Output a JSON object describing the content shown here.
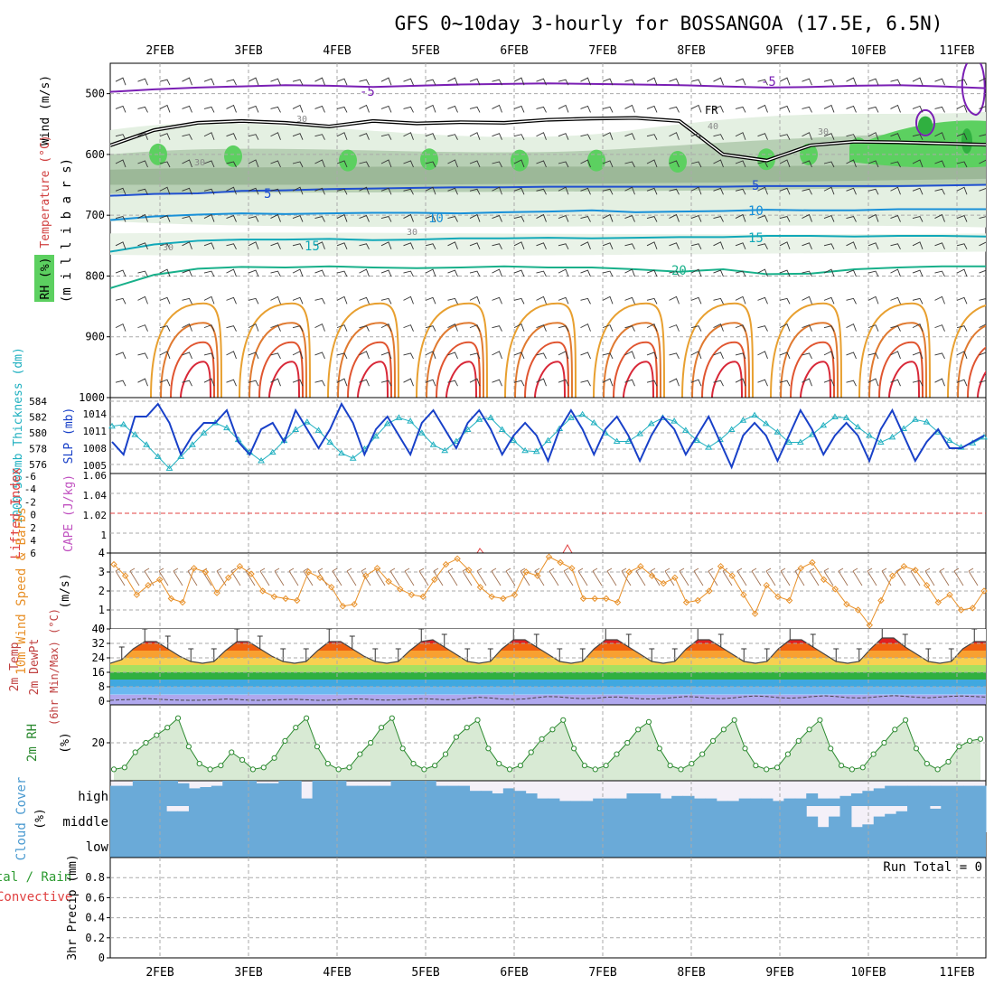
{
  "title": "GFS 0~10day 3-hourly for BOSSANGOA (17.5E, 6.5N)",
  "dates": [
    "2FEB",
    "3FEB",
    "4FEB",
    "5FEB",
    "6FEB",
    "7FEB",
    "8FEB",
    "9FEB",
    "10FEB",
    "11FEB"
  ],
  "chart_data": [
    {
      "panel": "upper-air",
      "type": "line",
      "labels": {
        "y_units": "(m i l l i b a r s)",
        "rh": "RH (%)",
        "temp": "Temperature (°C)",
        "wind": "Wind (m/s)"
      },
      "ylim": [
        1000,
        450
      ],
      "yticks": [
        500,
        600,
        700,
        800,
        900,
        1000
      ],
      "contour_labels": {
        "t_minus5": "-5",
        "t5": "5",
        "t10": "10",
        "t15": "15",
        "t20": "20",
        "freezing": "FR",
        "rh30": "30",
        "rh40": "40"
      },
      "series": [
        {
          "name": "-5",
          "color": "#7a1fb4",
          "y": [
            497,
            493,
            490,
            488,
            486,
            487,
            489,
            487,
            485,
            484,
            483,
            484,
            485,
            486,
            488,
            490,
            489,
            487,
            486,
            488,
            491
          ]
        },
        {
          "name": "FR",
          "color": "#000000",
          "y": [
            585,
            560,
            548,
            545,
            548,
            554,
            545,
            549,
            547,
            548,
            543,
            541,
            540,
            545,
            600,
            610,
            585,
            579,
            580,
            582,
            584
          ]
        },
        {
          "name": "5",
          "color": "#2050d0",
          "y": [
            668,
            665,
            664,
            660,
            659,
            657,
            656,
            655,
            654,
            654,
            653,
            653,
            653,
            653,
            653,
            652,
            652,
            652,
            652,
            651,
            650
          ]
        },
        {
          "name": "10",
          "color": "#1890d8",
          "y": [
            708,
            702,
            699,
            697,
            698,
            697,
            696,
            696,
            697,
            695,
            694,
            692,
            695,
            694,
            693,
            691,
            692,
            692,
            690,
            690,
            690
          ]
        },
        {
          "name": "15",
          "color": "#10a8b8",
          "y": [
            760,
            748,
            742,
            740,
            740,
            739,
            741,
            740,
            738,
            738,
            737,
            738,
            737,
            736,
            736,
            734,
            734,
            735,
            734,
            734,
            735
          ]
        },
        {
          "name": "20",
          "color": "#18b08a",
          "y": [
            820,
            798,
            788,
            785,
            786,
            784,
            786,
            787,
            786,
            784,
            786,
            786,
            789,
            793,
            789,
            797,
            796,
            789,
            786,
            784,
            784
          ]
        }
      ]
    },
    {
      "panel": "thickness-slp",
      "type": "line",
      "labels": {
        "thickness": "1000-500mb Thickness (dm)",
        "slp": "SLP (mb)"
      },
      "left_ticks": [
        "584",
        "582",
        "580",
        "578",
        "576"
      ],
      "right_ticks": [
        "1014",
        "1011",
        "1008",
        "1005"
      ],
      "thickness_ylim": [
        575,
        584
      ],
      "slp_ylim": [
        1004,
        1016
      ],
      "slp": [
        1009,
        1007,
        1013,
        1013,
        1015,
        1012,
        1007,
        1010,
        1012,
        1012,
        1014,
        1009,
        1007,
        1011,
        1012,
        1009,
        1014,
        1011,
        1008,
        1011,
        1015,
        1012,
        1007,
        1011,
        1013,
        1010,
        1007,
        1012,
        1014,
        1011,
        1008,
        1012,
        1014,
        1011,
        1007,
        1010,
        1012,
        1010,
        1006,
        1011,
        1014,
        1011,
        1007,
        1011,
        1013,
        1010,
        1006,
        1010,
        1013,
        1011,
        1007,
        1010,
        1013,
        1009,
        1005,
        1010,
        1012,
        1010,
        1006,
        1010,
        1014,
        1011,
        1007,
        1010,
        1012,
        1010,
        1006,
        1011,
        1014,
        1010,
        1006,
        1009,
        1011,
        1008,
        1008,
        1009,
        1010
      ],
      "thickness": [
        580.6,
        580.8,
        579.6,
        578.4,
        577.0,
        575.6,
        577.0,
        578.4,
        579.8,
        581.0,
        580.4,
        579.0,
        577.5,
        576.5,
        577.5,
        578.9,
        580.2,
        581.1,
        580.1,
        578.7,
        577.4,
        576.8,
        577.9,
        579.4,
        580.9,
        581.6,
        581.2,
        579.8,
        578.4,
        577.7,
        578.8,
        580.2,
        581.4,
        581.6,
        580.2,
        578.9,
        577.7,
        577.6,
        578.9,
        580.3,
        581.6,
        582.0,
        581.0,
        579.8,
        578.8,
        578.8,
        579.7,
        580.9,
        581.6,
        581.2,
        580.1,
        578.9,
        578.1,
        579.0,
        580.2,
        581.3,
        581.9,
        580.9,
        579.9,
        578.7,
        578.7,
        579.6,
        580.7,
        581.7,
        581.6,
        580.5,
        579.5,
        578.7,
        579.3,
        580.3,
        581.4,
        581.1,
        579.9,
        578.9,
        578.1,
        578.6,
        579.3
      ]
    },
    {
      "panel": "stability",
      "type": "line",
      "labels": {
        "li": "Lifted Index",
        "cape": "CAPE (J/kg)"
      },
      "left_ticks": [
        "-6",
        "-4",
        "-2",
        "0",
        "2",
        "4",
        "6"
      ],
      "right_ticks": [
        "1.06",
        "1.04",
        "1.02",
        "1"
      ]
    },
    {
      "panel": "wind-10m",
      "type": "line",
      "labels": {
        "title": "10m Wind Speed & Barbs",
        "units": "(m/s)"
      },
      "yticks": [
        "0",
        "1",
        "2",
        "3",
        "4"
      ],
      "ylim": [
        0,
        4
      ],
      "values": [
        3.4,
        2.8,
        1.8,
        2.3,
        2.6,
        1.6,
        1.4,
        3.2,
        3.0,
        1.9,
        2.7,
        3.3,
        2.9,
        2.0,
        1.7,
        1.6,
        1.5,
        3.0,
        2.7,
        2.2,
        1.2,
        1.3,
        2.8,
        3.2,
        2.5,
        2.1,
        1.8,
        1.7,
        2.6,
        3.4,
        3.7,
        3.1,
        2.2,
        1.7,
        1.6,
        1.8,
        3.0,
        2.8,
        3.8,
        3.5,
        3.2,
        1.6,
        1.6,
        1.6,
        1.4,
        3.0,
        3.3,
        2.8,
        2.4,
        2.7,
        1.4,
        1.5,
        2.0,
        3.3,
        2.8,
        1.8,
        0.8,
        2.3,
        1.7,
        1.5,
        3.2,
        3.5,
        2.6,
        2.1,
        1.3,
        1.0,
        0.2,
        1.5,
        2.8,
        3.3,
        3.1,
        2.3,
        1.4,
        1.8,
        1.0,
        1.1,
        2.0
      ]
    },
    {
      "panel": "temperature-2m",
      "type": "area",
      "labels": {
        "temp": "2m Temp",
        "dewpt": "2m DewPt",
        "minmax": "(6hr Min/Max) (°C)"
      },
      "yticks": [
        "0",
        "8",
        "16",
        "24",
        "32",
        "40"
      ],
      "ylim": [
        -2,
        40
      ],
      "temp": [
        21,
        23,
        29,
        33,
        33,
        29,
        25,
        22,
        21,
        22,
        28,
        33,
        33,
        29,
        25,
        22,
        21,
        22,
        28,
        33,
        33,
        29,
        25,
        22,
        21,
        22,
        28,
        33,
        34,
        30,
        26,
        22,
        21,
        22,
        29,
        34,
        34,
        30,
        26,
        22,
        21,
        22,
        29,
        34,
        34,
        30,
        26,
        22,
        21,
        22,
        29,
        34,
        34,
        30,
        26,
        22,
        21,
        22,
        29,
        34,
        34,
        30,
        26,
        22,
        21,
        22,
        29,
        35,
        35,
        30,
        26,
        22,
        21,
        22,
        29,
        33,
        33
      ],
      "dewpt": [
        0.5,
        0.8,
        1.0,
        1.5,
        1.2,
        0.8,
        0.6,
        0.5,
        0.6,
        0.8,
        1.2,
        1.0,
        0.6,
        0.5,
        0.7,
        0.9,
        1.1,
        0.8,
        0.5,
        0.6,
        0.9,
        1.3,
        1.2,
        0.8,
        0.6,
        0.8,
        1.1,
        1.4,
        1.2,
        0.8,
        0.9,
        1.6,
        2.2,
        1.8,
        1.2,
        1.0,
        1.3,
        2.0,
        2.6,
        2.4,
        1.8,
        1.4,
        1.6,
        2.2,
        2.4,
        1.9,
        1.4,
        1.2,
        1.5,
        2.1,
        2.6,
        2.3,
        1.7,
        1.4,
        1.8,
        2.5,
        2.9,
        2.6,
        2.0,
        1.7,
        2.0,
        2.6,
        3.0,
        2.6,
        2.0,
        1.8,
        2.1,
        2.7,
        3.1,
        2.7,
        2.2,
        1.9,
        2.3,
        2.7,
        2.9,
        2.6,
        2.3
      ]
    },
    {
      "panel": "rh-2m",
      "type": "area",
      "labels": {
        "title": "2m RH",
        "units": "(%)"
      },
      "yticks": [
        "20"
      ],
      "ylim": [
        0,
        40
      ],
      "values": [
        6,
        7,
        15,
        20,
        24,
        28,
        33,
        18,
        9,
        6,
        8,
        15,
        11,
        6,
        7,
        12,
        21,
        28,
        33,
        18,
        9,
        6,
        7,
        14,
        20,
        28,
        33,
        17,
        9,
        6,
        8,
        14,
        23,
        28,
        32,
        17,
        9,
        6,
        8,
        15,
        22,
        27,
        32,
        17,
        8,
        6,
        8,
        14,
        20,
        27,
        31,
        17,
        8,
        6,
        9,
        14,
        21,
        27,
        32,
        17,
        8,
        6,
        7,
        14,
        21,
        27,
        32,
        17,
        8,
        6,
        7,
        14,
        20,
        27,
        32,
        17,
        9,
        6,
        10,
        18,
        21,
        22
      ]
    },
    {
      "panel": "cloud-cover",
      "type": "bar",
      "labels": {
        "title": "Cloud Cover",
        "units": "(%)",
        "high": "high",
        "middle": "middle",
        "low": "low"
      },
      "high": [
        80,
        80,
        100,
        100,
        100,
        100,
        90,
        70,
        75,
        80,
        100,
        100,
        100,
        90,
        90,
        100,
        100,
        30,
        100,
        100,
        100,
        80,
        80,
        80,
        80,
        100,
        100,
        100,
        100,
        80,
        80,
        80,
        60,
        60,
        50,
        70,
        60,
        50,
        30,
        30,
        20,
        20,
        20,
        30,
        30,
        30,
        50,
        50,
        50,
        30,
        40,
        40,
        30,
        30,
        20,
        20,
        30,
        30,
        30,
        20,
        30,
        30,
        50,
        30,
        30,
        40,
        50,
        60,
        70,
        80,
        80,
        80,
        80,
        80,
        80,
        80,
        80,
        80
      ],
      "middle": [
        100,
        100,
        100,
        100,
        100,
        80,
        80,
        100,
        100,
        100,
        100,
        100,
        100,
        100,
        100,
        100,
        100,
        100,
        100,
        100,
        100,
        100,
        100,
        100,
        100,
        100,
        100,
        100,
        100,
        100,
        100,
        100,
        100,
        100,
        100,
        100,
        100,
        100,
        100,
        100,
        100,
        100,
        100,
        100,
        100,
        100,
        100,
        100,
        100,
        100,
        100,
        100,
        100,
        100,
        100,
        100,
        100,
        100,
        100,
        100,
        100,
        100,
        60,
        20,
        60,
        100,
        20,
        30,
        60,
        70,
        80,
        100,
        100,
        90,
        100,
        100,
        100,
        100
      ]
    },
    {
      "panel": "precip-3hr",
      "type": "bar",
      "labels": {
        "left1": "Total / Rain",
        "left2": "Convective",
        "units": "3hr Precip (mm)",
        "run_total": "Run Total = 0"
      },
      "yticks": [
        "0",
        "0.2",
        "0.4",
        "0.6",
        "0.8"
      ],
      "ylim": [
        0,
        1
      ],
      "values": []
    }
  ]
}
